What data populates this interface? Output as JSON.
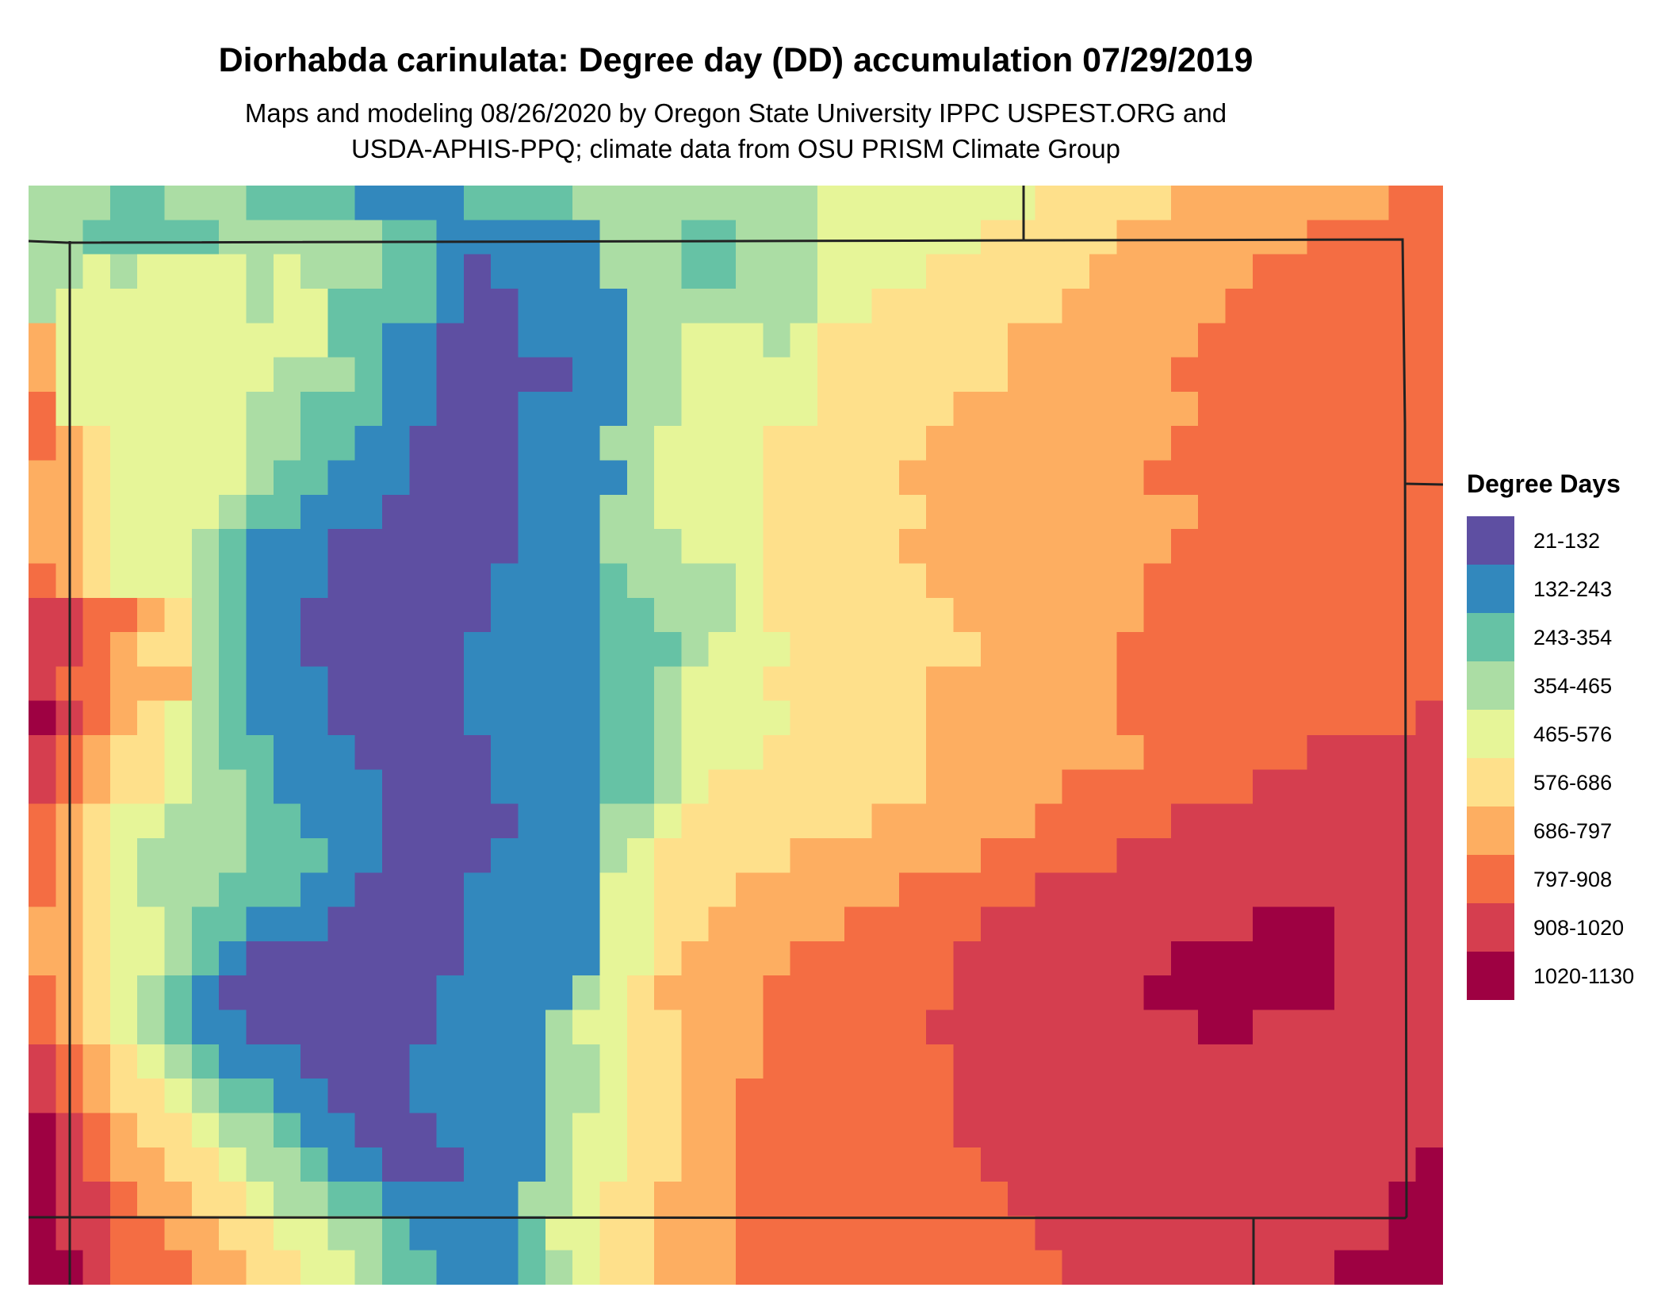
{
  "title": "Diorhabda carinulata: Degree day (DD) accumulation 07/29/2019",
  "subtitle_lines": [
    "Maps and modeling 08/26/2020 by Oregon State University IPPC USPEST.ORG and",
    "USDA-APHIS-PPQ; climate data from OSU PRISM Climate Group"
  ],
  "legend": {
    "title": "Degree Days",
    "items": [
      {
        "label": "21-132",
        "color": "#5e4fa2"
      },
      {
        "label": "132-243",
        "color": "#3288bd"
      },
      {
        "label": "243-354",
        "color": "#66c2a5"
      },
      {
        "label": "354-465",
        "color": "#abdda4"
      },
      {
        "label": "465-576",
        "color": "#e6f598"
      },
      {
        "label": "576-686",
        "color": "#fee08b"
      },
      {
        "label": "686-797",
        "color": "#fdae61"
      },
      {
        "label": "797-908",
        "color": "#f46d43"
      },
      {
        "label": "908-1020",
        "color": "#d53e4f"
      },
      {
        "label": "1020-1130",
        "color": "#9e0142"
      }
    ]
  },
  "map": {
    "region": "Colorado",
    "boundary_color": "#222222",
    "grid_rows": [
      "3332233322221111222233333333344444444555556666666677",
      "3322222333333221111113332233344444455555666666677777",
      "3343444434333221011113332233344445555556666667777777",
      "3444444434422221001111333333344555555566666677777777",
      "6444444444422110001111334443455555556666666777777777",
      "6444444443332110000011334444455555556666667777777777",
      "7444444433222110001111334444455555666666666777777777",
      "7654444433221100001113344445555556666666667777777777",
      "6654444432211100001111344445555566666666677777777777",
      "6654444322111000001113344445555556666666666777777777",
      "6654443211100000001113334445555566666666667777777777",
      "7654443211100000011112333345555556666666677777777777",
      "8877653211000000011112233345555555666666677777777777",
      "8876553211000000111112223444555555566666777777777777",
      "8776663211100000111112234445555556666666777777777777",
      "9876543211100000111112234444555556666666777777777778",
      "8765543221110000011112234445555556666666677777788888",
      "8765543321111000011112234555555556666677777778888888",
      "7654433322111000001113345555555666666777778888888888",
      "7654333322211000011113455555666666677777888888888888",
      "7654333222110000111114455566666677777888888888888888",
      "6654432211100000111114455666667777788888888889998888",
      "6654432100000000111114456666777777888888889999998888",
      "7654321000000001111134566667777777888888899999998888",
      "7654321100000001111344556667777778888888888998888888",
      "8765432111000011111334556667777777888888888888888888",
      "8765543221100011111334556677777777888888888888888888",
      "9876554332110001111344556677777777888888888888888888",
      "9876655433211000111344556677777777788888888888888889",
      "9887665543322111113345566677777777778888888888888899",
      "9887766554433211112445566677777777777888888888888899",
      "9987776655443221112345566677777777777788888888889999"
    ]
  }
}
